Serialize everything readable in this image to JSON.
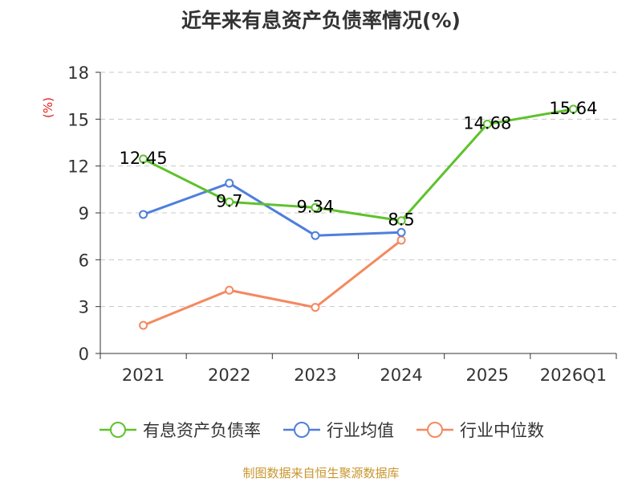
{
  "chart_data": {
    "type": "line",
    "title": "近年来有息资产负债率情况(%)",
    "ylabel": "(%)",
    "categories": [
      "2021",
      "2022",
      "2023",
      "2024",
      "2025",
      "2026Q1"
    ],
    "ylim": [
      0,
      18
    ],
    "yticks": [
      0,
      3,
      6,
      9,
      12,
      15,
      18
    ],
    "grid": true,
    "legend_position": "bottom",
    "series": [
      {
        "name": "有息资产负债率",
        "color": "#5ec22c",
        "values": [
          12.45,
          9.7,
          9.34,
          8.5,
          14.68,
          15.64
        ],
        "labels": [
          "12.45",
          "9.7",
          "9.34",
          "8.5",
          "14.68",
          "15.64"
        ]
      },
      {
        "name": "行业均值",
        "color": "#4f7fdc",
        "values": [
          8.9,
          10.9,
          7.55,
          7.75,
          null,
          null
        ]
      },
      {
        "name": "行业中位数",
        "color": "#f4895f",
        "values": [
          1.8,
          4.05,
          2.95,
          7.25,
          null,
          null
        ]
      }
    ]
  },
  "footer": {
    "source": "制图数据来自恒生聚源数据库"
  }
}
